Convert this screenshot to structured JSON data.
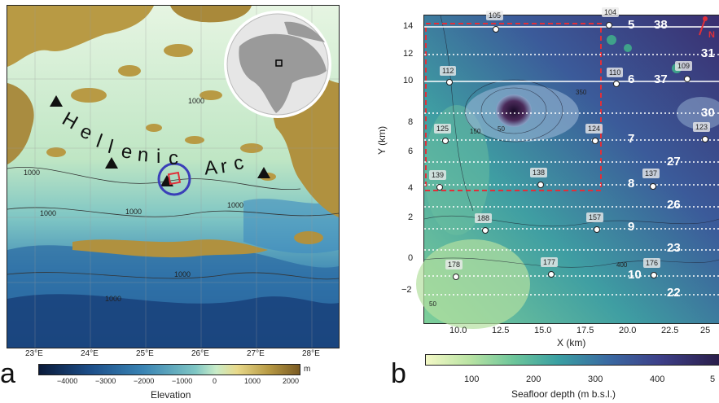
{
  "panel_a": {
    "letter": "a",
    "arc_label": [
      "H",
      "e",
      "l",
      "l",
      "e",
      "n",
      "i",
      "c",
      "A",
      "r",
      "c"
    ],
    "contour_labels": [
      "1000",
      "1000",
      "1000",
      "1000",
      "1000",
      "1000",
      "1000"
    ],
    "lon_ticks": [
      "23°E",
      "24°E",
      "25°E",
      "26°E",
      "27°E",
      "28°E"
    ],
    "colorbar": {
      "title": "Elevation",
      "unit": "m",
      "ticks": [
        "−4000",
        "−3000",
        "−2000",
        "−1000",
        "0",
        "1000",
        "2000"
      ]
    },
    "colors": {
      "land": "#c9a84a",
      "shallow": "#c9ecc8",
      "deep": "#1a4d86",
      "marker_circle": "#3a3fb8",
      "marker_square": "#e0303a"
    }
  },
  "panel_b": {
    "letter": "b",
    "xlabel": "X (km)",
    "ylabel": "Y (km)",
    "x_ticks": [
      "10.0",
      "12.5",
      "15.0",
      "17.5",
      "20.0",
      "22.5",
      "25"
    ],
    "y_ticks": [
      "14",
      "12",
      "10",
      "8",
      "6",
      "4",
      "2",
      "0",
      "−2"
    ],
    "stations": [
      {
        "id": "104"
      },
      {
        "id": "105"
      },
      {
        "id": "112"
      },
      {
        "id": "110"
      },
      {
        "id": "109"
      },
      {
        "id": "125"
      },
      {
        "id": "124"
      },
      {
        "id": "123"
      },
      {
        "id": "139"
      },
      {
        "id": "138"
      },
      {
        "id": "137"
      },
      {
        "id": "188"
      },
      {
        "id": "157"
      },
      {
        "id": "178"
      },
      {
        "id": "177"
      },
      {
        "id": "176"
      }
    ],
    "line_numbers": [
      "5",
      "38",
      "31",
      "6",
      "37",
      "30",
      "7",
      "27",
      "8",
      "26",
      "9",
      "23",
      "10",
      "22"
    ],
    "contour_labels": [
      "50",
      "150",
      "350",
      "400",
      "50"
    ],
    "north_label": "N",
    "colorbar": {
      "title": "Seafloor depth (m b.s.l.)",
      "ticks": [
        "100",
        "200",
        "300",
        "400",
        "5"
      ]
    },
    "colors": {
      "dashed_box": "#e0303a",
      "shallow": "#c9e89a",
      "deep": "#2a1e4a"
    }
  }
}
